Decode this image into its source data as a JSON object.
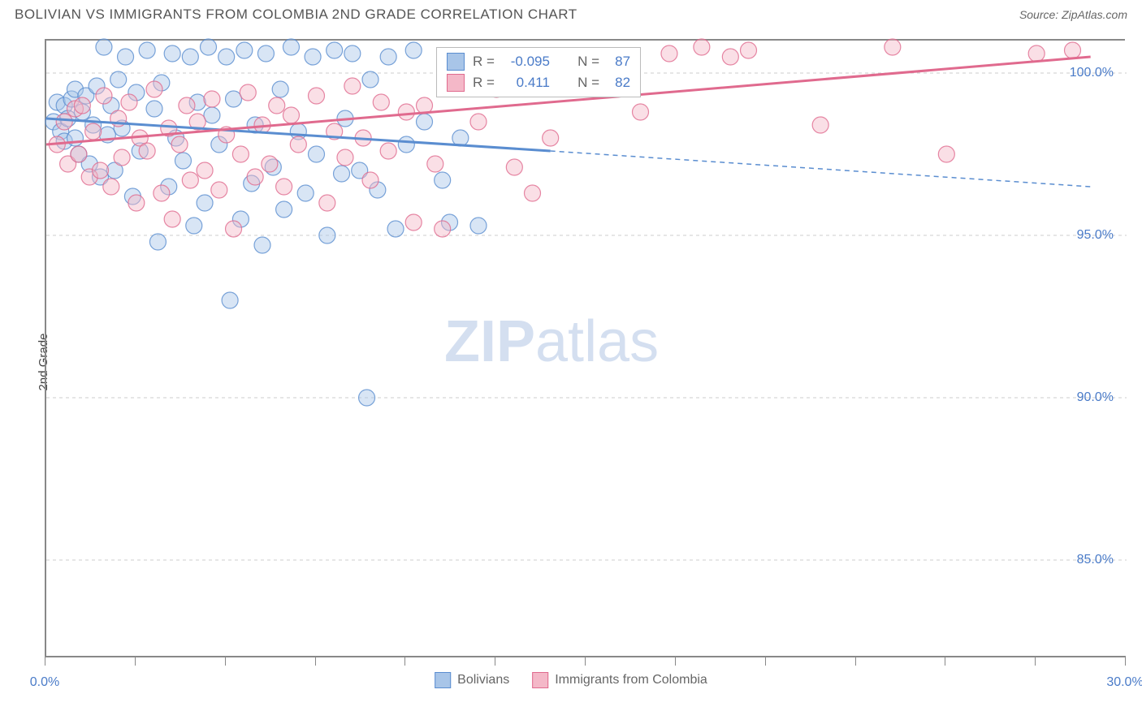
{
  "title": "BOLIVIAN VS IMMIGRANTS FROM COLOMBIA 2ND GRADE CORRELATION CHART",
  "source": "Source: ZipAtlas.com",
  "ylabel": "2nd Grade",
  "watermark_bold": "ZIP",
  "watermark_light": "atlas",
  "chart": {
    "type": "scatter",
    "background_color": "#ffffff",
    "grid_color": "#cccccc",
    "grid_dash": "4,4",
    "axis_color": "#888888",
    "tick_label_color": "#4a7bc8",
    "tick_fontsize": 16,
    "label_fontsize": 15,
    "title_fontsize": 17,
    "title_color": "#555555",
    "xlim": [
      0,
      30
    ],
    "ylim": [
      82,
      101
    ],
    "x_ticks": [
      0,
      2.5,
      5,
      7.5,
      10,
      12.5,
      15,
      17.5,
      20,
      22.5,
      25,
      27.5,
      30
    ],
    "x_tick_labels_shown": {
      "0": "0.0%",
      "30": "30.0%"
    },
    "y_ticks": [
      85,
      90,
      95,
      100
    ],
    "y_tick_labels": [
      "85.0%",
      "90.0%",
      "95.0%",
      "100.0%"
    ],
    "marker_radius": 10,
    "marker_opacity": 0.45,
    "line_width_solid": 3,
    "line_width_dash": 1.5,
    "series": [
      {
        "name": "Bolivians",
        "color_fill": "#a8c5e8",
        "color_stroke": "#5a8dd0",
        "r_value": "-0.095",
        "n_value": "87",
        "trend_solid": {
          "x1": 0,
          "y1": 98.6,
          "x2": 14,
          "y2": 97.6
        },
        "trend_dash": {
          "x1": 14,
          "y1": 97.6,
          "x2": 29,
          "y2": 96.5
        },
        "points": [
          [
            0.2,
            98.5
          ],
          [
            0.3,
            99.1
          ],
          [
            0.4,
            98.2
          ],
          [
            0.5,
            99.0
          ],
          [
            0.5,
            97.9
          ],
          [
            0.6,
            98.6
          ],
          [
            0.7,
            99.2
          ],
          [
            0.8,
            98.0
          ],
          [
            0.8,
            99.5
          ],
          [
            0.9,
            97.5
          ],
          [
            1.0,
            98.8
          ],
          [
            1.1,
            99.3
          ],
          [
            1.2,
            97.2
          ],
          [
            1.3,
            98.4
          ],
          [
            1.4,
            99.6
          ],
          [
            1.5,
            96.8
          ],
          [
            1.6,
            100.8
          ],
          [
            1.7,
            98.1
          ],
          [
            1.8,
            99.0
          ],
          [
            1.9,
            97.0
          ],
          [
            2.0,
            99.8
          ],
          [
            2.1,
            98.3
          ],
          [
            2.2,
            100.5
          ],
          [
            2.4,
            96.2
          ],
          [
            2.5,
            99.4
          ],
          [
            2.6,
            97.6
          ],
          [
            2.8,
            100.7
          ],
          [
            3.0,
            98.9
          ],
          [
            3.1,
            94.8
          ],
          [
            3.2,
            99.7
          ],
          [
            3.4,
            96.5
          ],
          [
            3.5,
            100.6
          ],
          [
            3.6,
            98.0
          ],
          [
            3.8,
            97.3
          ],
          [
            4.0,
            100.5
          ],
          [
            4.1,
            95.3
          ],
          [
            4.2,
            99.1
          ],
          [
            4.4,
            96.0
          ],
          [
            4.5,
            100.8
          ],
          [
            4.6,
            98.7
          ],
          [
            4.8,
            97.8
          ],
          [
            5.0,
            100.5
          ],
          [
            5.1,
            93.0
          ],
          [
            5.2,
            99.2
          ],
          [
            5.4,
            95.5
          ],
          [
            5.5,
            100.7
          ],
          [
            5.7,
            96.6
          ],
          [
            5.8,
            98.4
          ],
          [
            6.0,
            94.7
          ],
          [
            6.1,
            100.6
          ],
          [
            6.3,
            97.1
          ],
          [
            6.5,
            99.5
          ],
          [
            6.6,
            95.8
          ],
          [
            6.8,
            100.8
          ],
          [
            7.0,
            98.2
          ],
          [
            7.2,
            96.3
          ],
          [
            7.4,
            100.5
          ],
          [
            7.5,
            97.5
          ],
          [
            7.8,
            95.0
          ],
          [
            8.0,
            100.7
          ],
          [
            8.2,
            96.9
          ],
          [
            8.3,
            98.6
          ],
          [
            8.5,
            100.6
          ],
          [
            8.7,
            97.0
          ],
          [
            8.9,
            90.0
          ],
          [
            9.0,
            99.8
          ],
          [
            9.2,
            96.4
          ],
          [
            9.5,
            100.5
          ],
          [
            9.7,
            95.2
          ],
          [
            10.0,
            97.8
          ],
          [
            10.2,
            100.7
          ],
          [
            10.5,
            98.5
          ],
          [
            11.0,
            96.7
          ],
          [
            11.2,
            95.4
          ],
          [
            11.5,
            98.0
          ],
          [
            12.0,
            95.3
          ]
        ]
      },
      {
        "name": "Immigrants from Colombia",
        "color_fill": "#f4b8c8",
        "color_stroke": "#e06a8e",
        "r_value": "0.411",
        "n_value": "82",
        "trend_solid": {
          "x1": 0,
          "y1": 97.8,
          "x2": 29,
          "y2": 100.5
        },
        "trend_dash": null,
        "points": [
          [
            0.3,
            97.8
          ],
          [
            0.5,
            98.5
          ],
          [
            0.6,
            97.2
          ],
          [
            0.8,
            98.9
          ],
          [
            0.9,
            97.5
          ],
          [
            1.0,
            99.0
          ],
          [
            1.2,
            96.8
          ],
          [
            1.3,
            98.2
          ],
          [
            1.5,
            97.0
          ],
          [
            1.6,
            99.3
          ],
          [
            1.8,
            96.5
          ],
          [
            2.0,
            98.6
          ],
          [
            2.1,
            97.4
          ],
          [
            2.3,
            99.1
          ],
          [
            2.5,
            96.0
          ],
          [
            2.6,
            98.0
          ],
          [
            2.8,
            97.6
          ],
          [
            3.0,
            99.5
          ],
          [
            3.2,
            96.3
          ],
          [
            3.4,
            98.3
          ],
          [
            3.5,
            95.5
          ],
          [
            3.7,
            97.8
          ],
          [
            3.9,
            99.0
          ],
          [
            4.0,
            96.7
          ],
          [
            4.2,
            98.5
          ],
          [
            4.4,
            97.0
          ],
          [
            4.6,
            99.2
          ],
          [
            4.8,
            96.4
          ],
          [
            5.0,
            98.1
          ],
          [
            5.2,
            95.2
          ],
          [
            5.4,
            97.5
          ],
          [
            5.6,
            99.4
          ],
          [
            5.8,
            96.8
          ],
          [
            6.0,
            98.4
          ],
          [
            6.2,
            97.2
          ],
          [
            6.4,
            99.0
          ],
          [
            6.6,
            96.5
          ],
          [
            6.8,
            98.7
          ],
          [
            7.0,
            97.8
          ],
          [
            7.5,
            99.3
          ],
          [
            7.8,
            96.0
          ],
          [
            8.0,
            98.2
          ],
          [
            8.3,
            97.4
          ],
          [
            8.5,
            99.6
          ],
          [
            8.8,
            98.0
          ],
          [
            9.0,
            96.7
          ],
          [
            9.3,
            99.1
          ],
          [
            9.5,
            97.6
          ],
          [
            10.0,
            98.8
          ],
          [
            10.2,
            95.4
          ],
          [
            10.5,
            99.0
          ],
          [
            10.8,
            97.2
          ],
          [
            11.0,
            95.2
          ],
          [
            11.5,
            100.5
          ],
          [
            12.0,
            98.5
          ],
          [
            12.5,
            99.5
          ],
          [
            13.0,
            97.1
          ],
          [
            13.5,
            96.3
          ],
          [
            14.0,
            98.0
          ],
          [
            16.5,
            98.8
          ],
          [
            17.3,
            100.6
          ],
          [
            18.2,
            100.8
          ],
          [
            19.0,
            100.5
          ],
          [
            19.5,
            100.7
          ],
          [
            21.5,
            98.4
          ],
          [
            23.5,
            100.8
          ],
          [
            25.0,
            97.5
          ],
          [
            27.5,
            100.6
          ],
          [
            28.5,
            100.7
          ]
        ]
      }
    ],
    "legend": {
      "bottom": {
        "label1": "Bolivians",
        "label2": "Immigrants from Colombia"
      },
      "stat_box": {
        "r_label": "R =",
        "n_label": "N ="
      }
    }
  }
}
